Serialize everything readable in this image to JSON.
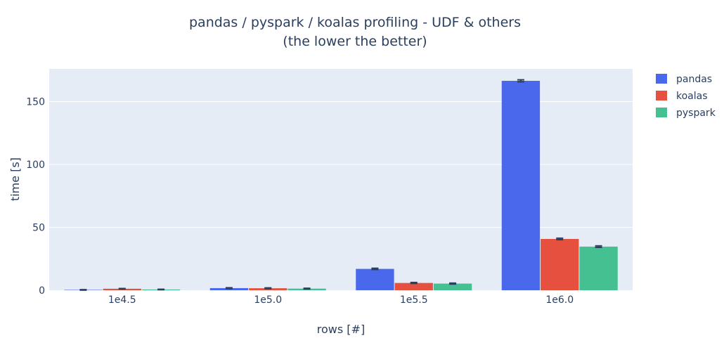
{
  "chart_data": {
    "type": "bar",
    "title_line1": "pandas / pyspark / koalas profiling - UDF & others",
    "title_line2": "(the lower the better)",
    "xlabel": "rows [#]",
    "ylabel": "time [s]",
    "categories": [
      "1e4.5",
      "1e5.0",
      "1e5.5",
      "1e6.0"
    ],
    "ylim": [
      0,
      176
    ],
    "yticks": [
      0,
      50,
      100,
      150
    ],
    "grid": true,
    "legend_position": "top-right",
    "series": [
      {
        "name": "pandas",
        "color": "#4a68eb",
        "values": [
          0.3,
          1.7,
          17.0,
          166.5
        ],
        "errors": [
          0.2,
          0.3,
          0.5,
          0.8
        ]
      },
      {
        "name": "koalas",
        "color": "#e5513e",
        "values": [
          1.2,
          1.6,
          5.8,
          40.8
        ],
        "errors": [
          0.2,
          0.3,
          0.4,
          0.6
        ]
      },
      {
        "name": "pyspark",
        "color": "#45c191",
        "values": [
          0.6,
          1.3,
          5.3,
          34.7
        ],
        "errors": [
          0.2,
          0.3,
          0.4,
          0.6
        ]
      }
    ]
  }
}
